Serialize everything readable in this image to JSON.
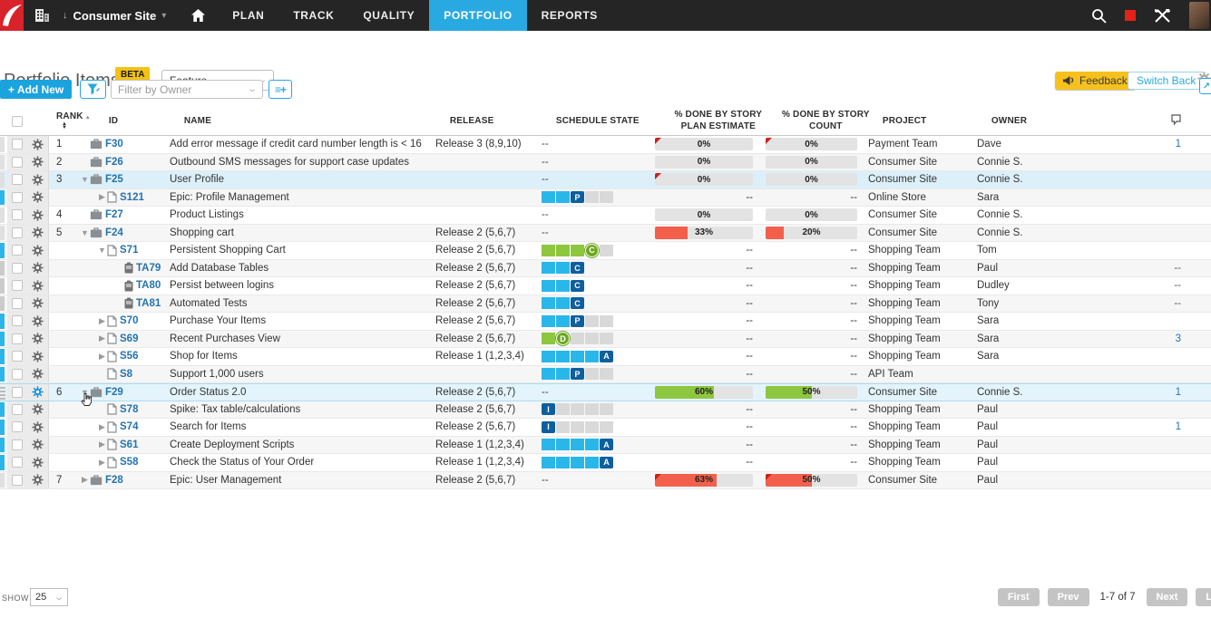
{
  "nav": {
    "workspace": "Consumer Site",
    "tabs": [
      {
        "label": "PLAN",
        "active": false
      },
      {
        "label": "TRACK",
        "active": false
      },
      {
        "label": "QUALITY",
        "active": false
      },
      {
        "label": "PORTFOLIO",
        "active": true
      },
      {
        "label": "REPORTS",
        "active": false
      }
    ]
  },
  "header": {
    "title": "Portfolio Items",
    "beta_badge": "BETA",
    "type_selected": "Feature",
    "feedback_label": "Feedback",
    "switch_back_label": "Switch Back"
  },
  "toolbar": {
    "add_new_label": "+ Add New",
    "filter_placeholder": "Filter by Owner",
    "columns_button_glyph": "≡+"
  },
  "colors": {
    "accent_blue": "#29a9e1",
    "link_blue": "#2573b0",
    "state_blue": "#29b7ea",
    "state_navy": "#0e5f9e",
    "state_green": "#8dc63f",
    "pct_red": "#f2604c",
    "pct_green": "#8dc63f",
    "beta_yellow": "#f4c213"
  },
  "table": {
    "columns": {
      "rank": "RANK",
      "id": "ID",
      "name": "NAME",
      "release": "RELEASE",
      "schedule_state": "SCHEDULE STATE",
      "pct_plan_line1": "% DONE BY STORY",
      "pct_plan_line2": "PLAN ESTIMATE",
      "pct_count_line1": "% DONE BY STORY",
      "pct_count_line2": "COUNT"
    },
    "headers_after": {
      "project": "PROJECT",
      "owner": "OWNER"
    }
  },
  "rows": [
    {
      "rank": "1",
      "indent": 0,
      "expand": "none",
      "type": "feature",
      "id": "F30",
      "name": "Add error message if credit card number length is < 16",
      "release": "Release 3 (8,9,10)",
      "state": null,
      "plan": {
        "label": "0%",
        "fill": 0,
        "color": "red",
        "flag": true
      },
      "count": {
        "label": "0%",
        "fill": 0,
        "color": "red",
        "flag": true
      },
      "project": "Payment Team",
      "owner": "Dave",
      "disc": "1",
      "edge": "feature",
      "hl": ""
    },
    {
      "rank": "2",
      "indent": 0,
      "expand": "none",
      "type": "feature",
      "id": "F26",
      "name": "Outbound SMS messages for support case updates",
      "release": "",
      "state": null,
      "plan": {
        "label": "0%",
        "fill": 0,
        "color": "red",
        "flag": false
      },
      "count": {
        "label": "0%",
        "fill": 0,
        "color": "red",
        "flag": false
      },
      "project": "Consumer Site",
      "owner": "Connie S.",
      "disc": "",
      "edge": "feature",
      "hl": ""
    },
    {
      "rank": "3",
      "indent": 0,
      "expand": "down",
      "type": "feature",
      "id": "F25",
      "name": "User Profile",
      "release": "",
      "state": null,
      "plan": {
        "label": "0%",
        "fill": 0,
        "color": "red",
        "flag": true
      },
      "count": {
        "label": "0%",
        "fill": 0,
        "color": "red",
        "flag": false
      },
      "project": "Consumer Site",
      "owner": "Connie S.",
      "disc": "",
      "edge": "feature",
      "hl": "hl"
    },
    {
      "rank": "",
      "indent": 1,
      "expand": "right",
      "type": "story",
      "id": "S121",
      "name": "Epic: Profile Management",
      "release": "",
      "state": {
        "letter": "P",
        "pos": 3,
        "total": 5,
        "color": "blue"
      },
      "plan": null,
      "count": null,
      "project": "Online Store",
      "owner": "Sara",
      "disc": "",
      "edge": "story",
      "hl": ""
    },
    {
      "rank": "4",
      "indent": 0,
      "expand": "none",
      "type": "feature",
      "id": "F27",
      "name": "Product Listings",
      "release": "",
      "state": null,
      "plan": {
        "label": "0%",
        "fill": 0,
        "color": "red",
        "flag": false
      },
      "count": {
        "label": "0%",
        "fill": 0,
        "color": "red",
        "flag": false
      },
      "project": "Consumer Site",
      "owner": "Connie S.",
      "disc": "",
      "edge": "feature",
      "hl": ""
    },
    {
      "rank": "5",
      "indent": 0,
      "expand": "down",
      "type": "feature",
      "id": "F24",
      "name": "Shopping cart",
      "release": "Release 2 (5,6,7)",
      "state": null,
      "plan": {
        "label": "33%",
        "fill": 0.33,
        "color": "red",
        "flag": false
      },
      "count": {
        "label": "20%",
        "fill": 0.2,
        "color": "red",
        "flag": false
      },
      "project": "Consumer Site",
      "owner": "Connie S.",
      "disc": "",
      "edge": "feature",
      "hl": ""
    },
    {
      "rank": "",
      "indent": 1,
      "expand": "down",
      "type": "story",
      "id": "S71",
      "name": "Persistent Shopping Cart",
      "release": "Release 2 (5,6,7)",
      "state": {
        "letter": "C",
        "pos": 4,
        "total": 5,
        "color": "green"
      },
      "plan": null,
      "count": null,
      "project": "Shopping Team",
      "owner": "Tom",
      "disc": "",
      "edge": "story",
      "hl": ""
    },
    {
      "rank": "",
      "indent": 2,
      "expand": "none",
      "type": "task",
      "id": "TA79",
      "name": "Add Database Tables",
      "release": "Release 2 (5,6,7)",
      "state": {
        "letter": "C",
        "pos": 3,
        "total": 3,
        "color": "blue"
      },
      "plan": null,
      "count": null,
      "project": "Shopping Team",
      "owner": "Paul",
      "disc": "--",
      "edge": "task",
      "hl": ""
    },
    {
      "rank": "",
      "indent": 2,
      "expand": "none",
      "type": "task",
      "id": "TA80",
      "name": "Persist between logins",
      "release": "Release 2 (5,6,7)",
      "state": {
        "letter": "C",
        "pos": 3,
        "total": 3,
        "color": "blue"
      },
      "plan": null,
      "count": null,
      "project": "Shopping Team",
      "owner": "Dudley",
      "disc": "--",
      "edge": "task",
      "hl": ""
    },
    {
      "rank": "",
      "indent": 2,
      "expand": "none",
      "type": "task",
      "id": "TA81",
      "name": "Automated Tests",
      "release": "Release 2 (5,6,7)",
      "state": {
        "letter": "C",
        "pos": 3,
        "total": 3,
        "color": "blue"
      },
      "plan": null,
      "count": null,
      "project": "Shopping Team",
      "owner": "Tony",
      "disc": "--",
      "edge": "task",
      "hl": ""
    },
    {
      "rank": "",
      "indent": 1,
      "expand": "right",
      "type": "story",
      "id": "S70",
      "name": "Purchase Your Items",
      "release": "Release 2 (5,6,7)",
      "state": {
        "letter": "P",
        "pos": 3,
        "total": 5,
        "color": "blue"
      },
      "plan": null,
      "count": null,
      "project": "Shopping Team",
      "owner": "Sara",
      "disc": "",
      "edge": "story",
      "hl": ""
    },
    {
      "rank": "",
      "indent": 1,
      "expand": "right",
      "type": "story",
      "id": "S69",
      "name": "Recent Purchases View",
      "release": "Release 2 (5,6,7)",
      "state": {
        "letter": "D",
        "pos": 2,
        "total": 5,
        "color": "green"
      },
      "plan": null,
      "count": null,
      "project": "Shopping Team",
      "owner": "Sara",
      "disc": "3",
      "edge": "story",
      "hl": ""
    },
    {
      "rank": "",
      "indent": 1,
      "expand": "right",
      "type": "story",
      "id": "S56",
      "name": "Shop for Items",
      "release": "Release 1 (1,2,3,4)",
      "state": {
        "letter": "A",
        "pos": 5,
        "total": 5,
        "color": "blue"
      },
      "plan": null,
      "count": null,
      "project": "Shopping Team",
      "owner": "Sara",
      "disc": "",
      "edge": "story",
      "hl": ""
    },
    {
      "rank": "",
      "indent": 1,
      "expand": "none",
      "type": "story",
      "id": "S8",
      "name": "Support 1,000 users",
      "release": "",
      "state": {
        "letter": "P",
        "pos": 3,
        "total": 5,
        "color": "blue"
      },
      "plan": null,
      "count": null,
      "project": "API Team",
      "owner": "",
      "disc": "",
      "edge": "story",
      "hl": ""
    },
    {
      "rank": "6",
      "indent": 0,
      "expand": "down",
      "type": "feature",
      "id": "F29",
      "name": "Order Status 2.0",
      "release": "Release 2 (5,6,7)",
      "state": null,
      "plan": {
        "label": "60%",
        "fill": 0.6,
        "color": "green",
        "flag": false
      },
      "count": {
        "label": "50%",
        "fill": 0.5,
        "color": "green",
        "flag": false
      },
      "project": "Consumer Site",
      "owner": "Connie S.",
      "disc": "1",
      "edge": "grip",
      "hl": "hlb",
      "gear_blue": true
    },
    {
      "rank": "",
      "indent": 1,
      "expand": "none",
      "type": "story",
      "id": "S78",
      "name": "Spike: Tax table/calculations",
      "release": "Release 2 (5,6,7)",
      "state": {
        "letter": "I",
        "pos": 1,
        "total": 5,
        "color": "blue"
      },
      "plan": null,
      "count": null,
      "project": "Shopping Team",
      "owner": "Paul",
      "disc": "",
      "edge": "story",
      "hl": ""
    },
    {
      "rank": "",
      "indent": 1,
      "expand": "right",
      "type": "story",
      "id": "S74",
      "name": "Search for Items",
      "release": "Release 2 (5,6,7)",
      "state": {
        "letter": "I",
        "pos": 1,
        "total": 5,
        "color": "blue"
      },
      "plan": null,
      "count": null,
      "project": "Shopping Team",
      "owner": "Paul",
      "disc": "1",
      "edge": "story",
      "hl": ""
    },
    {
      "rank": "",
      "indent": 1,
      "expand": "right",
      "type": "story",
      "id": "S61",
      "name": "Create Deployment Scripts",
      "release": "Release 1 (1,2,3,4)",
      "state": {
        "letter": "A",
        "pos": 5,
        "total": 5,
        "color": "blue"
      },
      "plan": null,
      "count": null,
      "project": "Shopping Team",
      "owner": "Paul",
      "disc": "",
      "edge": "story",
      "hl": ""
    },
    {
      "rank": "",
      "indent": 1,
      "expand": "right",
      "type": "story",
      "id": "S58",
      "name": "Check the Status of Your Order",
      "release": "Release 1 (1,2,3,4)",
      "state": {
        "letter": "A",
        "pos": 5,
        "total": 5,
        "color": "blue"
      },
      "plan": null,
      "count": null,
      "project": "Shopping Team",
      "owner": "Paul",
      "disc": "",
      "edge": "story",
      "hl": ""
    },
    {
      "rank": "7",
      "indent": 0,
      "expand": "right",
      "type": "feature",
      "id": "F28",
      "name": "Epic: User Management",
      "release": "Release 2 (5,6,7)",
      "state": null,
      "plan": {
        "label": "63%",
        "fill": 0.63,
        "color": "red",
        "flag": true
      },
      "count": {
        "label": "50%",
        "fill": 0.5,
        "color": "red",
        "flag": true
      },
      "project": "Consumer Site",
      "owner": "Paul",
      "disc": "",
      "edge": "feature",
      "hl": ""
    }
  ],
  "footer": {
    "show_label": "SHOW",
    "show_value": "25",
    "first": "First",
    "prev": "Prev",
    "range": "1-7 of 7",
    "next": "Next",
    "last": "Last"
  }
}
